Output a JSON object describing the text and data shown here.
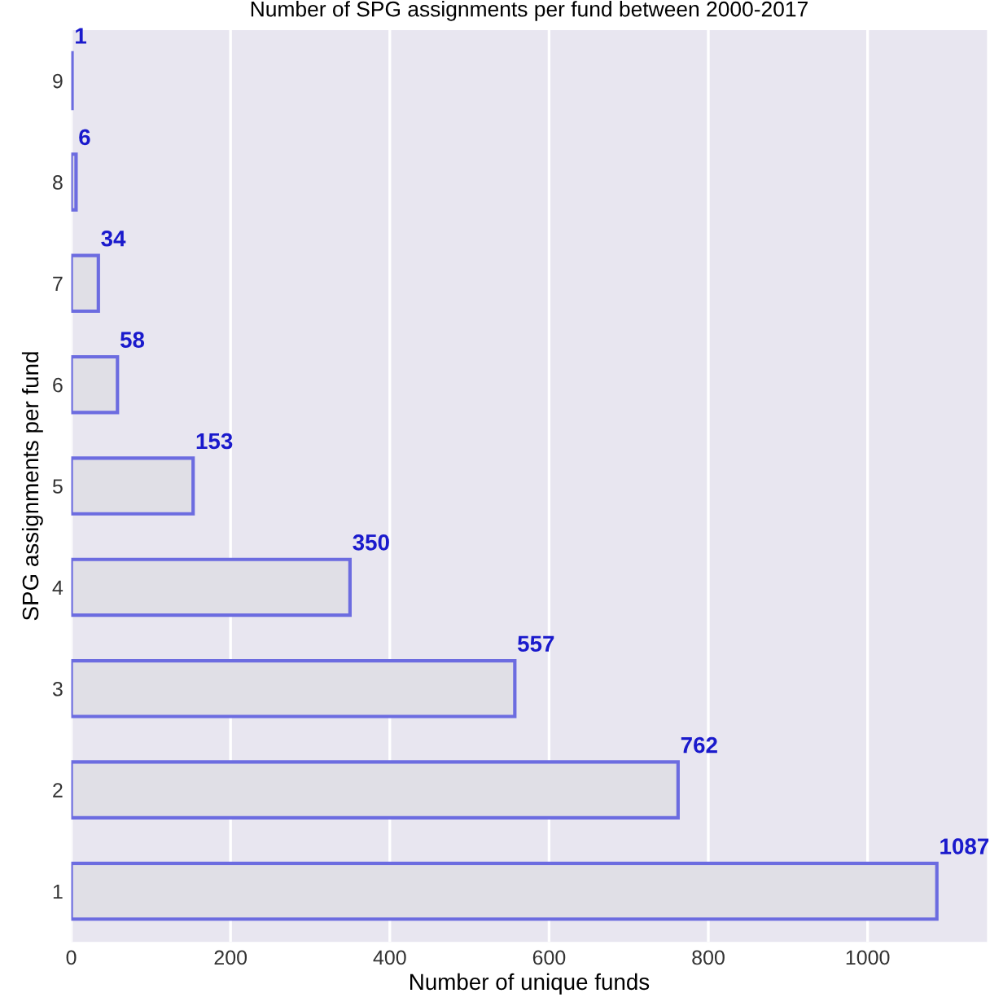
{
  "chart_data": {
    "type": "bar",
    "orientation": "horizontal",
    "title": "Number of SPG assignments per fund between 2000-2017",
    "xlabel": "Number of unique funds",
    "ylabel": "SPG assignments per fund",
    "categories": [
      "9",
      "8",
      "7",
      "6",
      "5",
      "4",
      "3",
      "2",
      "1"
    ],
    "series": [
      {
        "color": "#e0dfe6",
        "values": [
          1,
          6,
          34,
          58,
          153,
          350,
          557,
          762,
          1087
        ]
      }
    ],
    "data_labels": true,
    "xlim": [
      0,
      1150
    ],
    "xticks": [
      0,
      200,
      400,
      600,
      800,
      1000
    ],
    "grid": "x"
  }
}
